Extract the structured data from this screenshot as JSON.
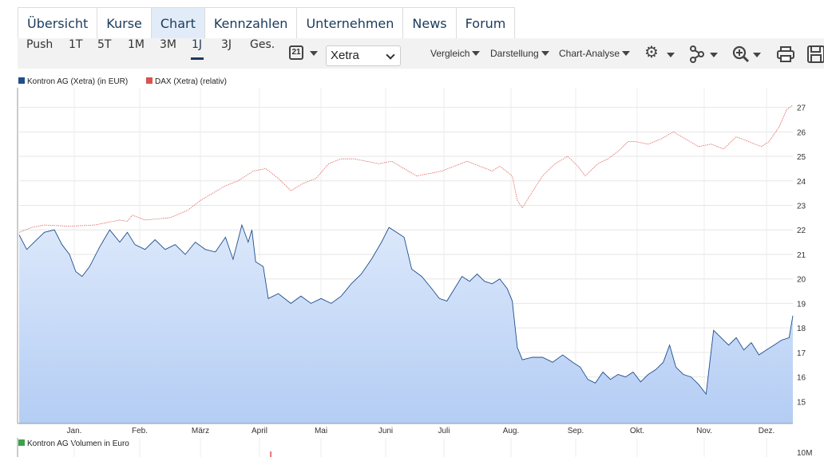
{
  "nav": {
    "tabs": [
      {
        "label": "Übersicht"
      },
      {
        "label": "Kurse"
      },
      {
        "label": "Chart"
      },
      {
        "label": "Kennzahlen"
      },
      {
        "label": "Unternehmen"
      },
      {
        "label": "News"
      },
      {
        "label": "Forum"
      }
    ],
    "active_tab": "Chart"
  },
  "toolbar": {
    "periods": [
      "Push",
      "1T",
      "5T",
      "1M",
      "3M",
      "1J",
      "3J",
      "Ges."
    ],
    "selected_period": "1J",
    "calendar_day": "21",
    "exchange_select": "Xetra",
    "menus": [
      "Vergleich",
      "Darstellung",
      "Chart-Analyse"
    ],
    "icons": [
      "settings-icon",
      "indicator-icon",
      "zoom-in-icon",
      "print-icon",
      "save-icon"
    ]
  },
  "legend": {
    "series1": "Kontron AG (Xetra) (in EUR)",
    "series2": "DAX (Xetra) (relativ)",
    "volume": "Kontron AG Volumen in Euro"
  },
  "colors": {
    "price_line": "#1f4e8c",
    "dax_line": "#d9534f",
    "area_top": "#dce8fb",
    "area_bottom": "#b4cdf4",
    "volume": "#3aa34a",
    "accent": "#1a3a5c"
  },
  "chart_data": {
    "type": "area",
    "y_ticks": [
      15,
      16,
      17,
      18,
      19,
      20,
      21,
      22,
      23,
      24,
      25,
      26,
      27
    ],
    "ylim": [
      14.1,
      27.8
    ],
    "x_months": [
      "Jan.",
      "Feb.",
      "März",
      "April",
      "Mai",
      "Juni",
      "Juli",
      "Aug.",
      "Sep.",
      "Okt.",
      "Nov.",
      "Dez."
    ],
    "volume_axis_label": "10M",
    "grid": true,
    "series": [
      {
        "name": "Kontron AG (Xetra) (in EUR)",
        "points": [
          [
            0,
            21.8
          ],
          [
            0.3,
            21.2
          ],
          [
            0.6,
            21.5
          ],
          [
            1.0,
            21.9
          ],
          [
            1.4,
            22.0
          ],
          [
            1.7,
            21.4
          ],
          [
            2.0,
            21.0
          ],
          [
            2.25,
            20.3
          ],
          [
            2.5,
            20.1
          ],
          [
            2.8,
            20.5
          ],
          [
            3.2,
            21.3
          ],
          [
            3.6,
            22.0
          ],
          [
            4.0,
            21.5
          ],
          [
            4.3,
            21.9
          ],
          [
            4.6,
            21.4
          ],
          [
            5.0,
            21.2
          ],
          [
            5.4,
            21.6
          ],
          [
            5.8,
            21.2
          ],
          [
            6.2,
            21.4
          ],
          [
            6.6,
            21.0
          ],
          [
            7.0,
            21.5
          ],
          [
            7.4,
            21.2
          ],
          [
            7.8,
            21.1
          ],
          [
            8.2,
            21.7
          ],
          [
            8.5,
            20.8
          ],
          [
            8.85,
            22.2
          ],
          [
            9.1,
            21.5
          ],
          [
            9.25,
            22.0
          ],
          [
            9.4,
            20.7
          ],
          [
            9.7,
            20.5
          ],
          [
            9.9,
            19.2
          ],
          [
            10.3,
            19.4
          ],
          [
            10.8,
            19.0
          ],
          [
            11.2,
            19.3
          ],
          [
            11.6,
            19.0
          ],
          [
            12.0,
            19.2
          ],
          [
            12.4,
            19.0
          ],
          [
            12.8,
            19.3
          ],
          [
            13.2,
            19.8
          ],
          [
            13.6,
            20.2
          ],
          [
            14.0,
            20.8
          ],
          [
            14.4,
            21.5
          ],
          [
            14.7,
            22.1
          ],
          [
            15.0,
            21.9
          ],
          [
            15.3,
            21.7
          ],
          [
            15.6,
            20.4
          ],
          [
            16.0,
            20.1
          ],
          [
            16.4,
            19.6
          ],
          [
            16.7,
            19.2
          ],
          [
            17.0,
            19.1
          ],
          [
            17.3,
            19.6
          ],
          [
            17.6,
            20.1
          ],
          [
            17.9,
            19.9
          ],
          [
            18.2,
            20.2
          ],
          [
            18.5,
            19.9
          ],
          [
            18.8,
            19.8
          ],
          [
            19.1,
            20.0
          ],
          [
            19.4,
            19.6
          ],
          [
            19.6,
            19.1
          ],
          [
            19.8,
            17.2
          ],
          [
            20.0,
            16.7
          ],
          [
            20.4,
            16.8
          ],
          [
            20.8,
            16.8
          ],
          [
            21.2,
            16.6
          ],
          [
            21.6,
            16.9
          ],
          [
            22.0,
            16.6
          ],
          [
            22.3,
            16.4
          ],
          [
            22.6,
            15.9
          ],
          [
            22.9,
            15.75
          ],
          [
            23.2,
            16.2
          ],
          [
            23.5,
            15.9
          ],
          [
            23.8,
            16.1
          ],
          [
            24.1,
            16.0
          ],
          [
            24.4,
            16.2
          ],
          [
            24.7,
            15.8
          ],
          [
            25.0,
            16.1
          ],
          [
            25.3,
            16.3
          ],
          [
            25.6,
            16.6
          ],
          [
            25.85,
            17.3
          ],
          [
            26.1,
            16.4
          ],
          [
            26.4,
            16.1
          ],
          [
            26.7,
            16.0
          ],
          [
            27.0,
            15.7
          ],
          [
            27.3,
            15.3
          ],
          [
            27.6,
            17.9
          ],
          [
            27.9,
            17.6
          ],
          [
            28.2,
            17.3
          ],
          [
            28.5,
            17.6
          ],
          [
            28.8,
            17.1
          ],
          [
            29.1,
            17.4
          ],
          [
            29.4,
            16.9
          ],
          [
            29.7,
            17.1
          ],
          [
            30.0,
            17.3
          ],
          [
            30.3,
            17.5
          ],
          [
            30.6,
            17.6
          ],
          [
            30.75,
            18.5
          ]
        ]
      },
      {
        "name": "DAX (Xetra) (relativ)",
        "points": [
          [
            0,
            21.9
          ],
          [
            0.5,
            22.1
          ],
          [
            1.0,
            22.2
          ],
          [
            2.0,
            22.15
          ],
          [
            3.0,
            22.2
          ],
          [
            3.5,
            22.3
          ],
          [
            4.0,
            22.4
          ],
          [
            4.3,
            22.35
          ],
          [
            4.5,
            22.6
          ],
          [
            5.0,
            22.4
          ],
          [
            6.0,
            22.5
          ],
          [
            6.7,
            22.8
          ],
          [
            7.2,
            23.2
          ],
          [
            7.7,
            23.5
          ],
          [
            8.2,
            23.8
          ],
          [
            8.7,
            24.0
          ],
          [
            9.3,
            24.4
          ],
          [
            9.8,
            24.5
          ],
          [
            10.3,
            24.1
          ],
          [
            10.8,
            23.6
          ],
          [
            11.3,
            23.9
          ],
          [
            11.8,
            24.1
          ],
          [
            12.3,
            24.7
          ],
          [
            12.8,
            24.9
          ],
          [
            13.3,
            24.9
          ],
          [
            13.8,
            24.8
          ],
          [
            14.3,
            24.7
          ],
          [
            14.8,
            24.8
          ],
          [
            15.3,
            24.5
          ],
          [
            15.8,
            24.2
          ],
          [
            16.3,
            24.3
          ],
          [
            16.8,
            24.4
          ],
          [
            17.3,
            24.6
          ],
          [
            17.8,
            24.8
          ],
          [
            18.3,
            24.6
          ],
          [
            18.8,
            24.4
          ],
          [
            19.1,
            24.6
          ],
          [
            19.6,
            24.2
          ],
          [
            19.8,
            23.2
          ],
          [
            20.0,
            22.9
          ],
          [
            20.3,
            23.4
          ],
          [
            20.8,
            24.2
          ],
          [
            21.3,
            24.7
          ],
          [
            21.8,
            25.0
          ],
          [
            22.2,
            24.6
          ],
          [
            22.5,
            24.2
          ],
          [
            23.0,
            24.7
          ],
          [
            23.4,
            24.9
          ],
          [
            23.8,
            25.2
          ],
          [
            24.2,
            25.6
          ],
          [
            24.5,
            25.6
          ],
          [
            25.0,
            25.5
          ],
          [
            25.5,
            25.7
          ],
          [
            26.0,
            26.0
          ],
          [
            26.5,
            25.7
          ],
          [
            27.0,
            25.4
          ],
          [
            27.5,
            25.5
          ],
          [
            28.0,
            25.3
          ],
          [
            28.5,
            25.8
          ],
          [
            29.0,
            25.6
          ],
          [
            29.5,
            25.4
          ],
          [
            29.8,
            25.6
          ],
          [
            30.2,
            26.2
          ],
          [
            30.5,
            26.9
          ],
          [
            30.75,
            27.1
          ]
        ]
      }
    ],
    "volume_marks": [
      10.0
    ]
  }
}
